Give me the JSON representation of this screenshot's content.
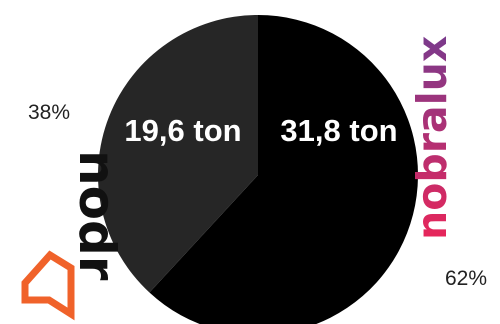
{
  "chart_data": {
    "type": "pie",
    "slices": [
      {
        "label": "nobralux",
        "value": 31.8,
        "value_label": "31,8 ton",
        "percent": 62,
        "percent_label": "62%",
        "color": "#000000"
      },
      {
        "label": "nodr",
        "value": 19.6,
        "value_label": "19,6 ton",
        "percent": 38,
        "percent_label": "38%",
        "color": "#262626"
      }
    ]
  },
  "brands": {
    "nobralux": {
      "name": "nobralux",
      "color_start": "#e8265a",
      "color_end": "#7a3a8c",
      "dot_color": "#7a3a8c"
    },
    "nodr": {
      "name": "nodr",
      "text_color": "#111111",
      "icon_color": "#f0622a",
      "icon": "pin-arrow-icon"
    }
  }
}
